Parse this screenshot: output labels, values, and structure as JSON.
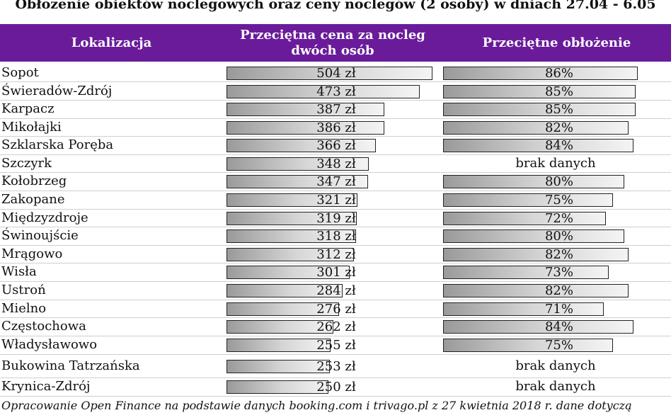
{
  "title": "Obłożenie obiektów noclegowych oraz ceny noclegów (2 osoby) w dniach 27.04 - 6.05",
  "header": {
    "col1": "Lokalizacja",
    "col2": "Przeciętna cena za nocleg dwóch osób",
    "col3": "Przeciętne obłożenie"
  },
  "chart_data": {
    "type": "table",
    "title": "Obłożenie obiektów noclegowych oraz ceny noclegów (2 osoby) w dniach 27.04 - 6.05",
    "columns": [
      "Lokalizacja",
      "Przeciętna cena za nocleg dwóch osób",
      "Przeciętne obłożenie"
    ],
    "price_unit": "zł",
    "occupancy_unit": "%",
    "no_data_label": "brak danych",
    "rows": [
      {
        "location": "Sopot",
        "price": 504,
        "occupancy": 86
      },
      {
        "location": "Świeradów-Zdrój",
        "price": 473,
        "occupancy": 85
      },
      {
        "location": "Karpacz",
        "price": 387,
        "occupancy": 85
      },
      {
        "location": "Mikołajki",
        "price": 386,
        "occupancy": 82
      },
      {
        "location": "Szklarska Poręba",
        "price": 366,
        "occupancy": 84
      },
      {
        "location": "Szczyrk",
        "price": 348,
        "occupancy": null
      },
      {
        "location": "Kołobrzeg",
        "price": 347,
        "occupancy": 80
      },
      {
        "location": "Zakopane",
        "price": 321,
        "occupancy": 75
      },
      {
        "location": "Międzyzdroje",
        "price": 319,
        "occupancy": 72
      },
      {
        "location": "Świnoujście",
        "price": 318,
        "occupancy": 80
      },
      {
        "location": "Mrągowo",
        "price": 312,
        "occupancy": 82
      },
      {
        "location": "Wisła",
        "price": 301,
        "occupancy": 73
      },
      {
        "location": "Ustroń",
        "price": 284,
        "occupancy": 82
      },
      {
        "location": "Mielno",
        "price": 276,
        "occupancy": 71
      },
      {
        "location": "Częstochowa",
        "price": 262,
        "occupancy": 84
      },
      {
        "location": "Władysławowo",
        "price": 255,
        "occupancy": 75
      },
      {
        "location": "Bukowina Tatrzańska",
        "price": 253,
        "occupancy": null
      },
      {
        "location": "Krynica-Zdrój",
        "price": 250,
        "occupancy": null
      }
    ]
  },
  "footnote": "Opracowanie Open Finance na podstawie danych booking.com i trivago.pl z 27 kwietnia 2018 r. dane dotyczą",
  "colors": {
    "header_bg": "#6a1b9a",
    "header_text": "#ffffff"
  }
}
